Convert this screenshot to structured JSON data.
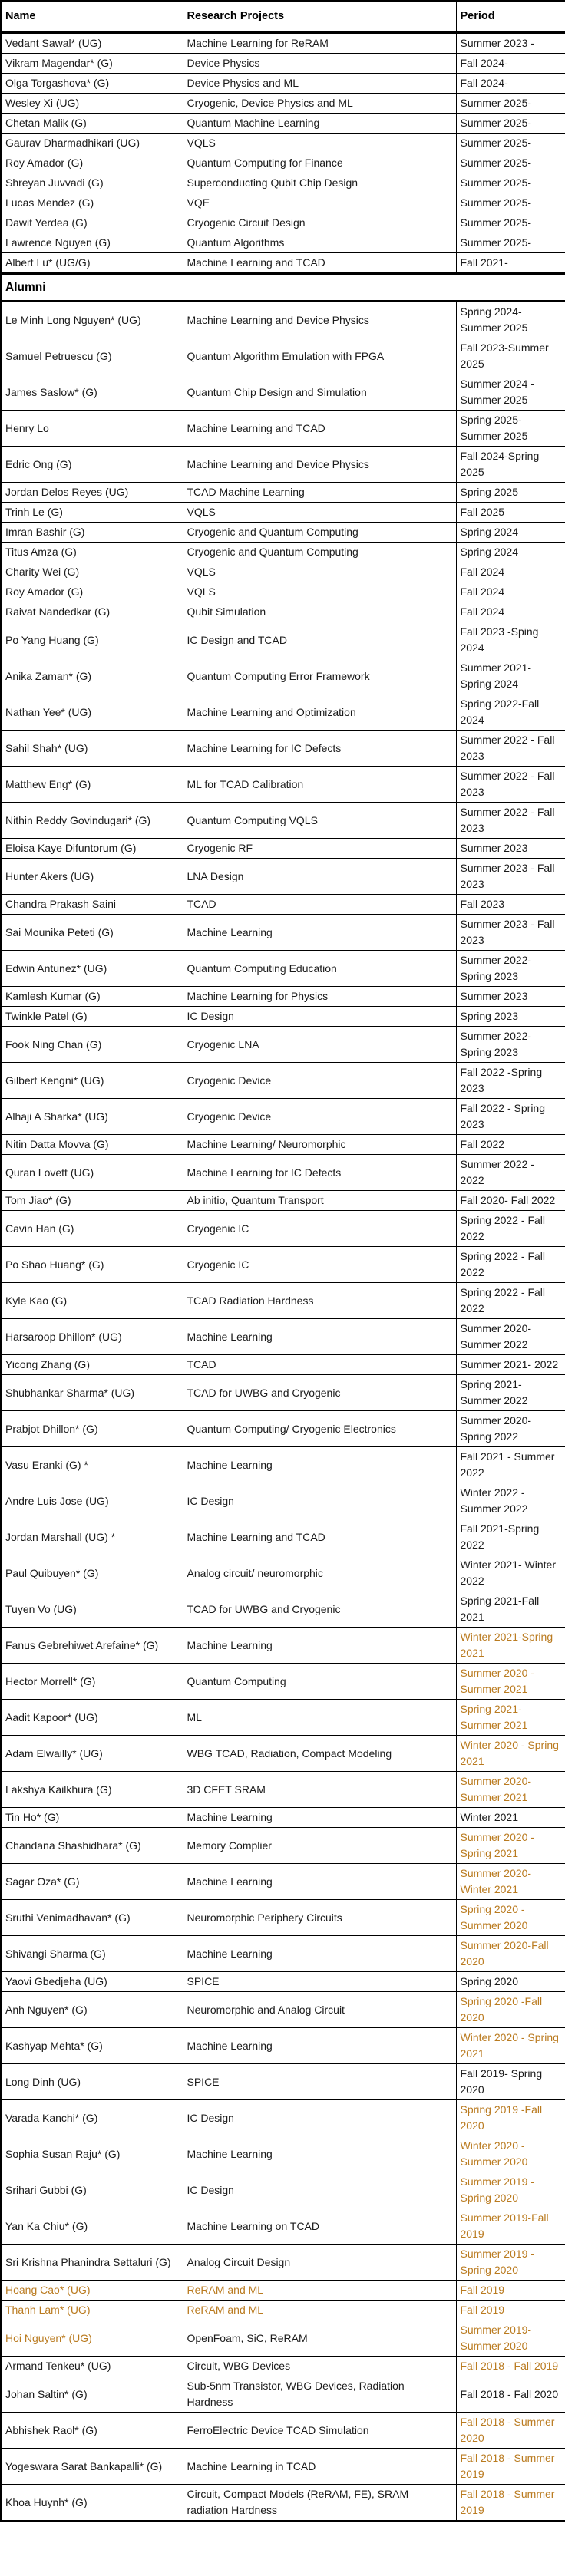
{
  "colors": {
    "accent_orange": "#ba7b20",
    "text": "#1b1b1b",
    "border": "#000000"
  },
  "table": {
    "headers": [
      "Name",
      "Research Projects",
      "Period"
    ],
    "section_label": "Alumni",
    "current_members": [
      {
        "name": "Vedant Sawal* (UG)",
        "project": "Machine Learning for ReRAM",
        "period": "Summer 2023 -"
      },
      {
        "name": "Vikram Magendar* (G)",
        "project": "Device Physics",
        "period": "Fall 2024-"
      },
      {
        "name": "Olga Torgashova* (G)",
        "project": "Device Physics and ML",
        "period": "Fall 2024-"
      },
      {
        "name": "Wesley Xi (UG)",
        "project": "Cryogenic, Device Physics and ML",
        "period": "Summer 2025-"
      },
      {
        "name": "Chetan Malik (G)",
        "project": "Quantum Machine Learning",
        "period": "Summer 2025-"
      },
      {
        "name": "Gaurav Dharmadhikari (UG)",
        "project": "VQLS",
        "period": "Summer 2025-"
      },
      {
        "name": "Roy Amador (G)",
        "project": "Quantum Computing for Finance",
        "period": "Summer 2025-"
      },
      {
        "name": "Shreyan Juvvadi (G)",
        "project": "Superconducting Qubit Chip Design",
        "period": "Summer 2025-"
      },
      {
        "name": "Lucas Mendez (G)",
        "project": "VQE",
        "period": "Summer 2025-"
      },
      {
        "name": "Dawit Yerdea (G)",
        "project": "Cryogenic Circuit Design",
        "period": "Summer 2025-"
      },
      {
        "name": "Lawrence Nguyen (G)",
        "project": "Quantum Algorithms",
        "period": "Summer 2025-"
      },
      {
        "name": "Albert Lu* (UG/G)",
        "project": "Machine Learning and TCAD",
        "period": "Fall 2021-"
      }
    ],
    "alumni": [
      {
        "name": "Le Minh Long Nguyen* (UG)",
        "project": "Machine Learning and Device Physics",
        "period": "Spring 2024- Summer 2025"
      },
      {
        "name": "Samuel Petruescu (G)",
        "project": "Quantum Algorithm Emulation with FPGA",
        "period": "Fall 2023-Summer 2025"
      },
      {
        "name": "James Saslow* (G)",
        "project": "Quantum Chip Design and Simulation",
        "period": "Summer 2024 - Summer 2025"
      },
      {
        "name": "Henry Lo",
        "project": "Machine Learning and TCAD",
        "period": "Spring 2025- Summer 2025"
      },
      {
        "name": "Edric Ong (G)",
        "project": "Machine Learning and Device Physics",
        "period": "Fall 2024-Spring 2025"
      },
      {
        "name": "Jordan Delos Reyes (UG)",
        "project": "TCAD Machine Learning",
        "period": "Spring 2025"
      },
      {
        "name": "Trinh Le (G)",
        "project": "VQLS",
        "period": "Fall 2025"
      },
      {
        "name": "Imran Bashir (G)",
        "project": "Cryogenic and Quantum Computing",
        "period": "Spring 2024"
      },
      {
        "name": "Titus Amza (G)",
        "project": "Cryogenic and Quantum Computing",
        "period": "Spring 2024"
      },
      {
        "name": "Charity Wei (G)",
        "project": "VQLS",
        "period": "Fall 2024"
      },
      {
        "name": "Roy Amador (G)",
        "project": "VQLS",
        "period": "Fall 2024"
      },
      {
        "name": "Raivat Nandedkar (G)",
        "project": "Qubit Simulation",
        "period": "Fall 2024"
      },
      {
        "name": "Po Yang Huang (G)",
        "project": "IC Design and TCAD",
        "period": "Fall 2023 -Sping 2024"
      },
      {
        "name": "Anika Zaman* (G)",
        "project": "Quantum Computing Error Framework",
        "period": "Summer 2021- Spring 2024"
      },
      {
        "name": "Nathan Yee* (UG)",
        "project": "Machine Learning and Optimization",
        "period": "Spring 2022-Fall 2024"
      },
      {
        "name": "Sahil Shah* (UG)",
        "project": "Machine Learning for IC Defects",
        "period": "Summer 2022 - Fall 2023"
      },
      {
        "name": "Matthew Eng* (G)",
        "project": "ML for TCAD Calibration",
        "period": "Summer 2022 - Fall 2023"
      },
      {
        "name": "Nithin Reddy Govindugari* (G)",
        "project": "Quantum Computing VQLS",
        "period": "Summer 2022 - Fall 2023"
      },
      {
        "name": "Eloisa Kaye Difuntorum (G)",
        "project": "Cryogenic RF",
        "period": "Summer 2023"
      },
      {
        "name": "Hunter Akers (UG)",
        "project": "LNA Design",
        "period": "Summer 2023 - Fall 2023"
      },
      {
        "name": "Chandra Prakash Saini",
        "project": "TCAD",
        "period": "Fall 2023"
      },
      {
        "name": "Sai Mounika Peteti (G)",
        "project": "Machine Learning",
        "period": "Summer 2023 - Fall 2023"
      },
      {
        "name": "Edwin Antunez* (UG)",
        "project": "Quantum Computing Education",
        "period": "Summer 2022- Spring 2023"
      },
      {
        "name": "Kamlesh Kumar (G)",
        "project": "Machine Learning for Physics",
        "period": "Summer 2023"
      },
      {
        "name": "Twinkle Patel (G)",
        "project": "IC Design",
        "period": "Spring 2023"
      },
      {
        "name": "Fook Ning Chan (G)",
        "project": "Cryogenic LNA",
        "period": "Summer 2022- Spring 2023"
      },
      {
        "name": "Gilbert Kengni* (UG)",
        "project": "Cryogenic Device",
        "period": "Fall 2022 -Spring 2023"
      },
      {
        "name": "Alhaji A Sharka* (UG)",
        "project": "Cryogenic Device",
        "period": "Fall 2022 - Spring 2023"
      },
      {
        "name": "Nitin Datta Movva (G)",
        "project": "Machine Learning/ Neuromorphic",
        "period": "Fall 2022"
      },
      {
        "name": "Quran Lovett (UG)",
        "project": "Machine Learning for IC Defects",
        "period": "Summer 2022 - 2022"
      },
      {
        "name": "Tom Jiao* (G)",
        "project": "Ab initio, Quantum Transport",
        "period": "Fall 2020- Fall 2022"
      },
      {
        "name": "Cavin Han (G)",
        "project": "Cryogenic IC",
        "period": "Spring 2022 - Fall 2022"
      },
      {
        "name": "Po Shao Huang* (G)",
        "project": "Cryogenic IC",
        "period": "Spring 2022 - Fall 2022"
      },
      {
        "name": "Kyle Kao (G)",
        "project": "TCAD Radiation Hardness",
        "period": "Spring 2022 - Fall 2022"
      },
      {
        "name": "Harsaroop Dhillon* (UG)",
        "project": "Machine Learning",
        "period": "Summer 2020- Summer 2022"
      },
      {
        "name": "Yicong Zhang (G)",
        "project": "TCAD",
        "period": "Summer 2021- 2022"
      },
      {
        "name": "Shubhankar Sharma* (UG)",
        "project": "TCAD for UWBG and Cryogenic",
        "period": "Spring 2021- Summer 2022"
      },
      {
        "name": "Prabjot Dhillon* (G)",
        "project": "Quantum Computing/ Cryogenic Electronics",
        "period": "Summer 2020- Spring 2022"
      },
      {
        "name": "Vasu Eranki (G) *",
        "project": "Machine Learning",
        "period": "Fall 2021 - Summer 2022"
      },
      {
        "name": "Andre Luis Jose (UG)",
        "project": "IC Design",
        "period": "Winter 2022 - Summer 2022"
      },
      {
        "name": "Jordan Marshall (UG) *",
        "project": "Machine Learning and TCAD",
        "period": "Fall 2021-Spring 2022"
      },
      {
        "name": "Paul Quibuyen* (G)",
        "project": "Analog circuit/ neuromorphic",
        "period": "Winter 2021- Winter 2022"
      },
      {
        "name": "Tuyen Vo (UG)",
        "project": "TCAD for UWBG and Cryogenic",
        "period": "Spring 2021-Fall 2021"
      },
      {
        "name": "Fanus Gebrehiwet Arefaine* (G)",
        "project": "Machine Learning",
        "period": "Winter 2021-Spring 2021",
        "orange": "d"
      },
      {
        "name": "Hector Morrell* (G)",
        "project": "Quantum Computing",
        "period": "Summer 2020 - Summer 2021",
        "orange": "d"
      },
      {
        "name": "Aadit Kapoor* (UG)",
        "project": "ML",
        "period": "Spring 2021- Summer 2021",
        "orange": "d"
      },
      {
        "name": "Adam Elwailly* (UG)",
        "project": "WBG TCAD, Radiation, Compact Modeling",
        "period": "Winter 2020 - Spring 2021",
        "orange": "d"
      },
      {
        "name": "Lakshya Kailkhura (G)",
        "project": "3D CFET SRAM",
        "period": "Summer 2020- Summer 2021",
        "orange": "d"
      },
      {
        "name": "Tin Ho* (G)",
        "project": "Machine Learning",
        "period": "Winter 2021"
      },
      {
        "name": "Chandana Shashidhara* (G)",
        "project": "Memory Complier",
        "period": "Summer 2020 - Spring 2021",
        "orange": "d"
      },
      {
        "name": "Sagar Oza* (G)",
        "project": "Machine Learning",
        "period": "Summer 2020- Winter 2021",
        "orange": "d"
      },
      {
        "name": "Sruthi Venimadhavan* (G)",
        "project": "Neuromorphic Periphery Circuits",
        "period": "Spring 2020 - Summer 2020",
        "orange": "d"
      },
      {
        "name": "Shivangi Sharma (G)",
        "project": "Machine Learning",
        "period": "Summer 2020-Fall 2020",
        "orange": "d"
      },
      {
        "name": "Yaovi Gbedjeha (UG)",
        "project": "SPICE",
        "period": "Spring 2020"
      },
      {
        "name": "Anh Nguyen* (G)",
        "project": "Neuromorphic and Analog Circuit",
        "period": "Spring 2020 -Fall 2020",
        "orange": "d"
      },
      {
        "name": "Kashyap Mehta* (G)",
        "project": "Machine Learning",
        "period": "Winter 2020 - Spring 2021",
        "orange": "d"
      },
      {
        "name": "Long Dinh (UG)",
        "project": "SPICE",
        "period": "Fall 2019- Spring 2020"
      },
      {
        "name": "Varada Kanchi* (G)",
        "project": "IC Design",
        "period": "Spring 2019 -Fall 2020",
        "orange": "d"
      },
      {
        "name": "Sophia Susan Raju* (G)",
        "project": "Machine Learning",
        "period": "Winter 2020 - Summer 2020",
        "orange": "d"
      },
      {
        "name": "Srihari Gubbi (G)",
        "project": "IC Design",
        "period": "Summer 2019 - Spring 2020",
        "orange": "d"
      },
      {
        "name": "Yan Ka Chiu* (G)",
        "project": "Machine Learning on TCAD",
        "period": "Summer 2019-Fall 2019",
        "orange": "d"
      },
      {
        "name": "Sri Krishna Phanindra Settaluri (G)",
        "project": "Analog Circuit Design",
        "period": "Summer 2019 - Spring 2020",
        "orange": "d"
      },
      {
        "name": "Hoang Cao* (UG)",
        "project": "ReRAM and ML",
        "period": "Fall 2019",
        "orange": "npd"
      },
      {
        "name": "Thanh Lam* (UG)",
        "project": "ReRAM and ML",
        "period": "Fall 2019",
        "orange": "npd"
      },
      {
        "name": "Hoi Nguyen* (UG)",
        "project": "OpenFoam, SiC, ReRAM",
        "period": "Summer 2019- Summer 2020",
        "orange": "nd"
      },
      {
        "name": "Armand Tenkeu* (UG)",
        "project": "Circuit, WBG Devices",
        "period": "Fall 2018 - Fall 2019",
        "orange": "d"
      },
      {
        "name": "Johan Saltin* (G)",
        "project": "Sub-5nm Transistor, WBG Devices, Radiation Hardness",
        "period": "Fall 2018 - Fall 2020"
      },
      {
        "name": "Abhishek Raol* (G)",
        "project": "FerroElectric Device TCAD Simulation",
        "period": "Fall 2018 - Summer 2020",
        "orange": "d"
      },
      {
        "name": "Yogeswara Sarat Bankapalli* (G)",
        "project": "Machine Learning in TCAD",
        "period": "Fall 2018 - Summer 2019",
        "orange": "d"
      },
      {
        "name": "Khoa Huynh* (G)",
        "project": "Circuit, Compact Models (ReRAM, FE), SRAM radiation Hardness",
        "period": "Fall 2018 - Summer 2019",
        "orange": "d"
      }
    ]
  }
}
